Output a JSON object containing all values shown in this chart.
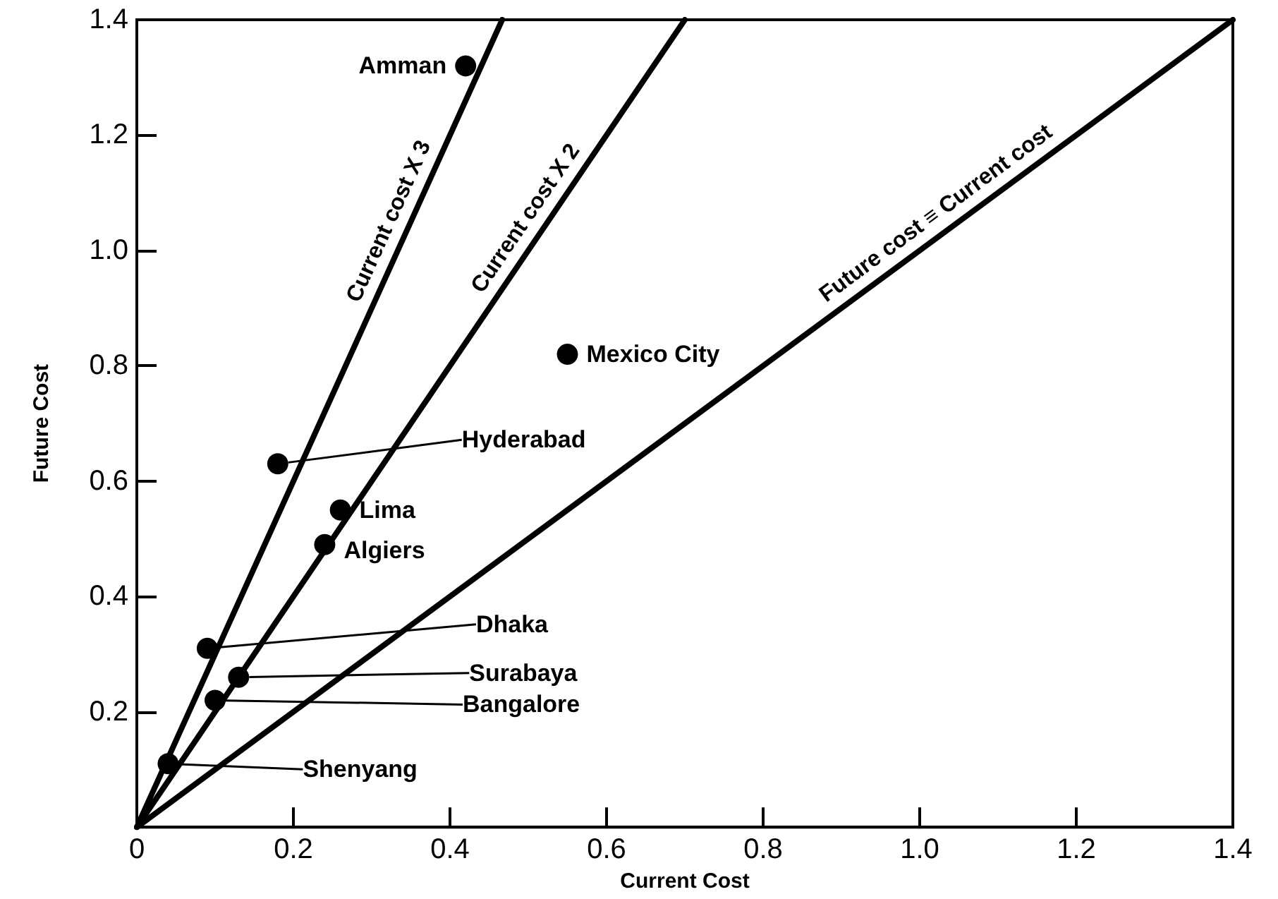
{
  "chart_data": {
    "type": "scatter",
    "xlabel": "Current Cost",
    "ylabel": "Future Cost",
    "xlim": [
      0,
      1.4
    ],
    "ylim": [
      0,
      1.4
    ],
    "xticks": [
      0,
      0.2,
      0.4,
      0.6,
      0.8,
      {
        "value": 1,
        "label": "1.0"
      },
      1.2,
      1.4
    ],
    "yticks": [
      0.2,
      0.4,
      0.6,
      0.8,
      {
        "value": 1,
        "label": "1.0"
      },
      1.2,
      1.4
    ],
    "grid": false,
    "legend": false,
    "marker": "circle",
    "series": [
      {
        "name": "Amman",
        "color": "#000000",
        "x": [
          0.42
        ],
        "values": [
          1.32
        ]
      },
      {
        "name": "Mexico City",
        "color": "#000000",
        "x": [
          0.55
        ],
        "values": [
          0.82
        ]
      },
      {
        "name": "Hyderabad",
        "color": "#000000",
        "x": [
          0.18
        ],
        "values": [
          0.63
        ]
      },
      {
        "name": "Lima",
        "color": "#000000",
        "x": [
          0.26
        ],
        "values": [
          0.55
        ]
      },
      {
        "name": "Algiers",
        "color": "#000000",
        "x": [
          0.24
        ],
        "values": [
          0.49
        ]
      },
      {
        "name": "Dhaka",
        "color": "#000000",
        "x": [
          0.09
        ],
        "values": [
          0.31
        ]
      },
      {
        "name": "Surabaya",
        "color": "#000000",
        "x": [
          0.13
        ],
        "values": [
          0.26
        ]
      },
      {
        "name": "Bangalore",
        "color": "#000000",
        "x": [
          0.1
        ],
        "values": [
          0.22
        ]
      },
      {
        "name": "Shenyang",
        "color": "#000000",
        "x": [
          0.04
        ],
        "values": [
          0.11
        ]
      },
      {
        "name": "Current cost X 3",
        "type": "line",
        "color": "#000000",
        "line_style": "solid",
        "marker": "none",
        "x": [
          0,
          0.4667
        ],
        "values": [
          0,
          1.4
        ]
      },
      {
        "name": "Current cost X 2",
        "type": "line",
        "color": "#000000",
        "line_style": "solid",
        "marker": "none",
        "x": [
          0,
          0.7
        ],
        "values": [
          0,
          1.4
        ]
      },
      {
        "name": "Future cost ≡ Current cost",
        "type": "line",
        "color": "#000000",
        "line_style": "solid",
        "marker": "none",
        "x": [
          0,
          1.4
        ],
        "values": [
          0,
          1.4
        ]
      }
    ]
  }
}
